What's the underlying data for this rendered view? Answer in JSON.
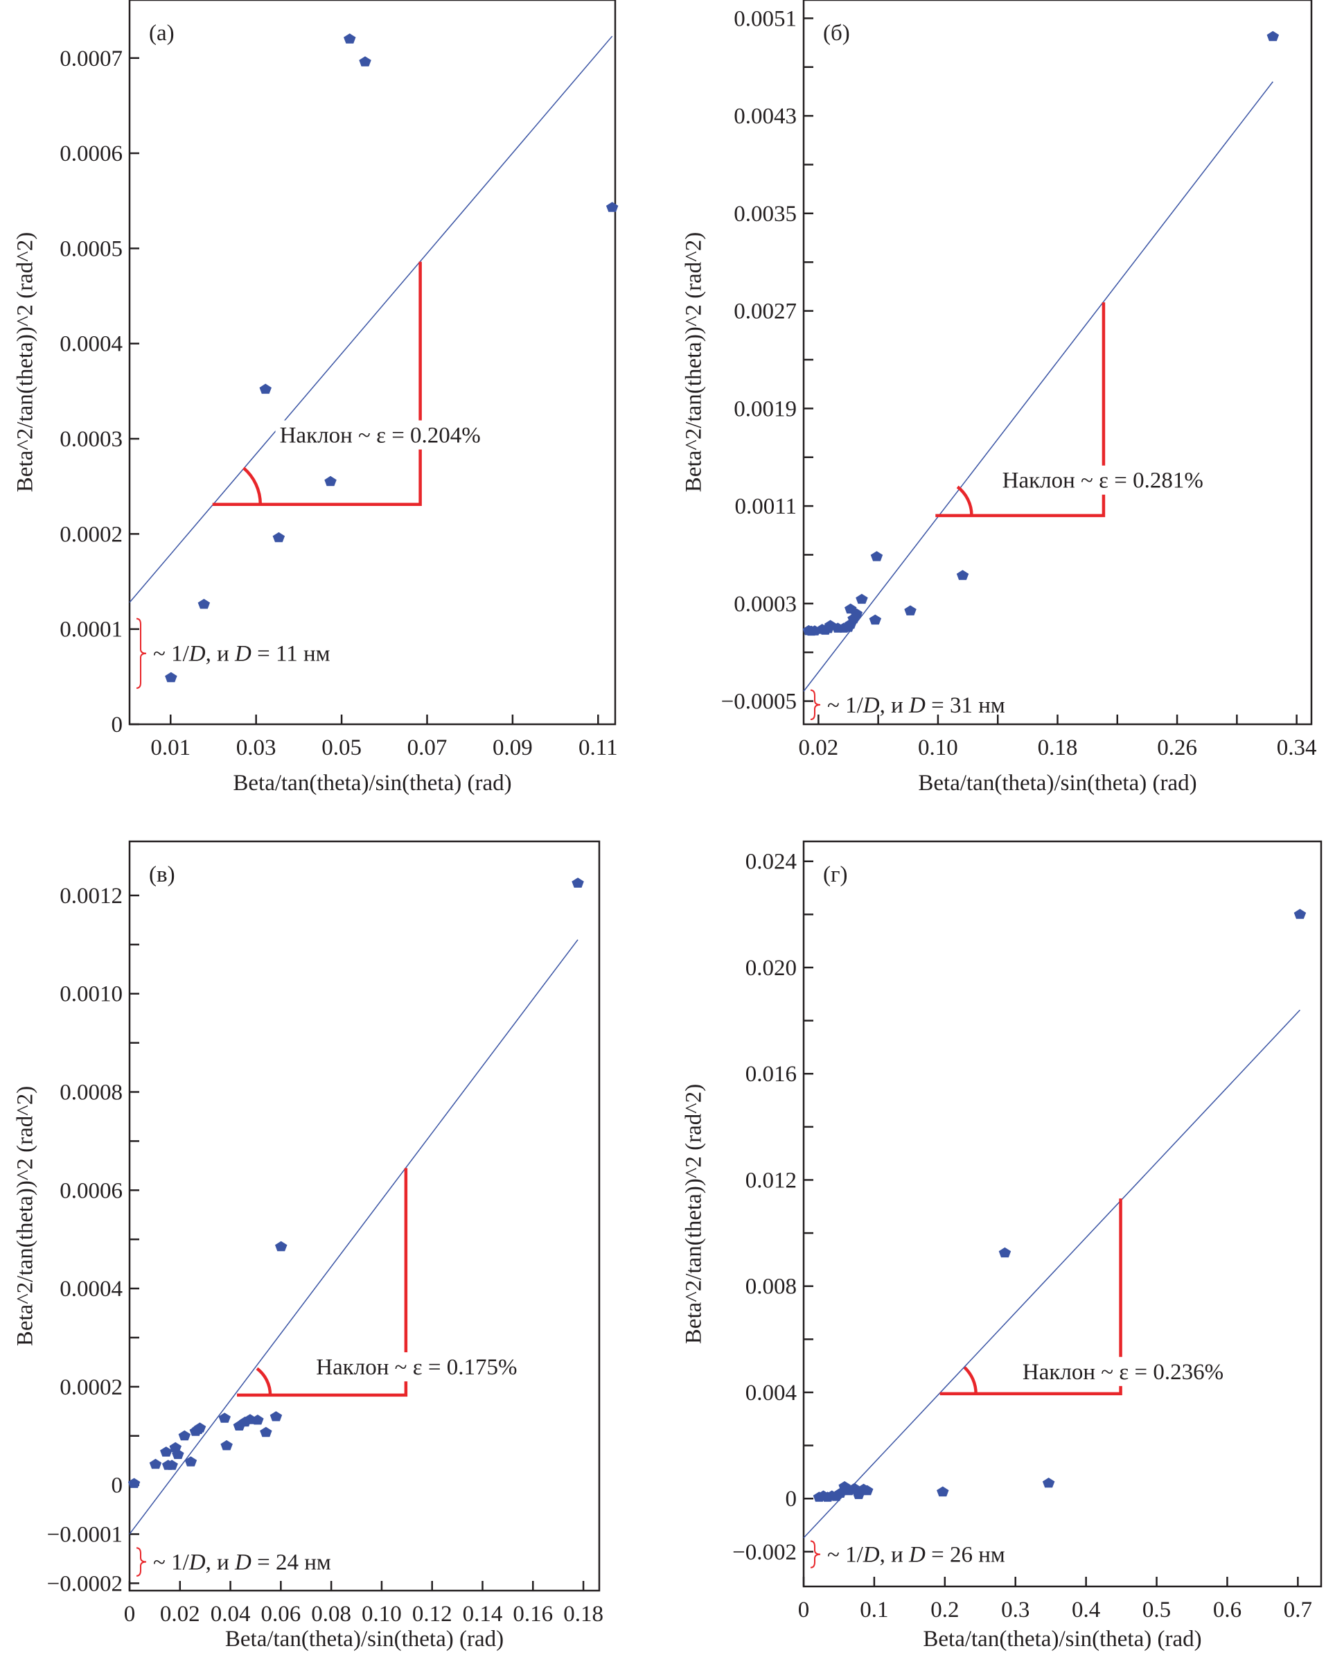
{
  "chart_data": [
    {
      "id": "a",
      "type": "scatter",
      "panel_label": "(а)",
      "xlabel": "Beta/tan(theta)/sin(theta) (rad)",
      "ylabel": "Beta^2/tan(theta))^2 (rad^2)",
      "xlim": [
        0.0004,
        0.114
      ],
      "ylim": [
        0,
        0.000761
      ],
      "xticks": [
        0.01,
        0.03,
        0.05,
        0.07,
        0.09,
        0.11
      ],
      "xtick_labels": [
        "0.01",
        "0.03",
        "0.05",
        "0.07",
        "0.09",
        "0.11"
      ],
      "yticks": [
        0,
        0.0001,
        0.0002,
        0.0003,
        0.0004,
        0.0005,
        0.0006,
        0.0007
      ],
      "ytick_labels": [
        "0",
        "0.0001",
        "0.0002",
        "0.0003",
        "0.0004",
        "0.0005",
        "0.0006",
        "0.0007"
      ],
      "yminor": [],
      "points": [
        [
          0.0101,
          4.9e-05
        ],
        [
          0.0178,
          0.000126
        ],
        [
          0.0322,
          0.000352
        ],
        [
          0.0353,
          0.000196
        ],
        [
          0.0474,
          0.000255
        ],
        [
          0.0519,
          0.00072
        ],
        [
          0.0555,
          0.000696
        ],
        [
          0.1133,
          0.000543
        ]
      ],
      "fit_line": {
        "x": [
          0.0004,
          0.1133
        ],
        "y": [
          0.000128,
          0.000723
        ]
      },
      "slope_triangle": {
        "x0": 0.0198,
        "x1": 0.0684,
        "y0": 0.000231,
        "y1": 0.000486,
        "arc_x": 0.031
      },
      "slope_text": "Наклон ~ ε = 0.204%",
      "slope_text_pos": [
        0.0355,
        0.000296
      ],
      "intercept_brace": {
        "y0": 3.8e-05,
        "y1": 0.000111
      },
      "intercept_text_prefix": "~ 1/",
      "intercept_text_D": "D",
      "intercept_text_mid": ", и ",
      "intercept_text_D2": "D",
      "intercept_text_suffix": " = 11 нм",
      "colors": {
        "points": "#3a54a4",
        "line": "#3a54a4",
        "annotation": "#e8262a",
        "axis": "#231f20"
      }
    },
    {
      "id": "b",
      "type": "scatter",
      "panel_label": "(б)",
      "xlabel": "Beta/tan(theta)/sin(theta) (rad)",
      "ylabel": "Beta^2/tan(theta))^2 (rad^2)",
      "xlim": [
        0.0101,
        0.3499
      ],
      "ylim": [
        -0.00069,
        0.00525
      ],
      "xticks": [
        0.02,
        0.1,
        0.18,
        0.26,
        0.34
      ],
      "xtick_labels": [
        "0.02",
        "0.10",
        "0.18",
        "0.26",
        "0.34"
      ],
      "xminor": [
        0.06,
        0.14,
        0.22,
        0.3
      ],
      "yticks": [
        -0.0005,
        0.0003,
        0.0011,
        0.0019,
        0.0027,
        0.0035,
        0.0043,
        0.0051
      ],
      "ytick_labels": [
        "−0.0005",
        "0.0003",
        "0.0011",
        "0.0019",
        "0.0027",
        "0.0035",
        "0.0043",
        "0.0051"
      ],
      "yminor": [
        -0.0001,
        0.0007,
        0.0015,
        0.0023,
        0.0031,
        0.0039,
        0.0047
      ],
      "points": [
        [
          0.0135,
          7.8e-05
        ],
        [
          0.0152,
          7.4e-05
        ],
        [
          0.0175,
          7.6e-05
        ],
        [
          0.0225,
          8.8e-05
        ],
        [
          0.0245,
          8.2e-05
        ],
        [
          0.0265,
          9.5e-05
        ],
        [
          0.028,
          0.00012
        ],
        [
          0.033,
          9.8e-05
        ],
        [
          0.037,
          9.8e-05
        ],
        [
          0.04,
          0.000105
        ],
        [
          0.0415,
          0.00013
        ],
        [
          0.0435,
          0.000175
        ],
        [
          0.0455,
          0.000215
        ],
        [
          0.0415,
          0.000255
        ],
        [
          0.049,
          0.000335
        ],
        [
          0.058,
          0.000165
        ],
        [
          0.059,
          0.000685
        ],
        [
          0.0815,
          0.00024
        ],
        [
          0.1165,
          0.00053
        ],
        [
          0.3241,
          0.00495
        ]
      ],
      "fit_line": {
        "x": [
          0.0101,
          0.3241
        ],
        "y": [
          -0.00042,
          0.00458
        ]
      },
      "slope_triangle": {
        "x0": 0.0983,
        "x1": 0.2108,
        "y0": 0.001022,
        "y1": 0.00277,
        "arc_x": 0.1225
      },
      "slope_text": "Наклон ~ ε = 0.281%",
      "slope_text_pos": [
        0.143,
        0.00125
      ],
      "intercept_brace": {
        "y0": -0.00065,
        "y1": -0.00041
      },
      "intercept_text_prefix": "~ 1/",
      "intercept_text_D": "D",
      "intercept_text_mid": ", и ",
      "intercept_text_D2": "D",
      "intercept_text_suffix": " = 31 нм",
      "colors": {
        "points": "#3a54a4",
        "line": "#3a54a4",
        "annotation": "#e8262a",
        "axis": "#231f20"
      }
    },
    {
      "id": "c",
      "type": "scatter",
      "panel_label": "(в)",
      "xlabel": "Beta/tan(theta)/sin(theta) (rad)",
      "ylabel": "Beta^2/tan(theta))^2 (rad^2)",
      "xlim": [
        0,
        0.1863
      ],
      "ylim": [
        -0.000215,
        0.00131
      ],
      "xticks": [
        0,
        0.02,
        0.04,
        0.06,
        0.08,
        0.1,
        0.12,
        0.14,
        0.16,
        0.18
      ],
      "xtick_labels": [
        "0",
        "0.02",
        "0.04",
        "0.06",
        "0.08",
        "0.10",
        "0.12",
        "0.14",
        "0.16",
        "0.18"
      ],
      "yticks": [
        -0.0002,
        -0.0001,
        0,
        0.0002,
        0.0004,
        0.0006,
        0.0008,
        0.001,
        0.0012
      ],
      "ytick_labels": [
        "−0.0002",
        "−0.0001",
        "0",
        "0.0002",
        "0.0004",
        "0.0006",
        "0.0008",
        "0.0010",
        "0.0012"
      ],
      "yminor": [
        0.0001,
        0.0003,
        0.0005,
        0.0007,
        0.0009,
        0.0011
      ],
      "points": [
        [
          0.0018,
          3e-06
        ],
        [
          0.0103,
          4.2e-05
        ],
        [
          0.0145,
          6.7e-05
        ],
        [
          0.0153,
          4e-05
        ],
        [
          0.0168,
          4e-05
        ],
        [
          0.0182,
          7.6e-05
        ],
        [
          0.0192,
          6.2e-05
        ],
        [
          0.0218,
          0.0001
        ],
        [
          0.0243,
          4.7e-05
        ],
        [
          0.0262,
          0.000109
        ],
        [
          0.0272,
          0.000113
        ],
        [
          0.0279,
          0.000116
        ],
        [
          0.0377,
          0.000136
        ],
        [
          0.0385,
          8e-05
        ],
        [
          0.0435,
          0.00012
        ],
        [
          0.0458,
          0.000128
        ],
        [
          0.0478,
          0.000133
        ],
        [
          0.0508,
          0.000132
        ],
        [
          0.0541,
          0.000107
        ],
        [
          0.0581,
          0.000139
        ],
        [
          0.0601,
          0.000485
        ],
        [
          0.1778,
          0.001225
        ]
      ],
      "fit_line": {
        "x": [
          0.0,
          0.1778
        ],
        "y": [
          -0.0001,
          0.00111
        ]
      },
      "slope_triangle": {
        "x0": 0.0426,
        "x1": 0.1096,
        "y0": 0.000183,
        "y1": 0.000645,
        "arc_x": 0.0558
      },
      "slope_text": "Наклон ~ ε = 0.175%",
      "slope_text_pos": [
        0.074,
        0.000225
      ],
      "intercept_brace": {
        "y0": -0.000185,
        "y1": -0.000128
      },
      "intercept_text_prefix": "~ 1/",
      "intercept_text_D": "D",
      "intercept_text_mid": ", и ",
      "intercept_text_D2": "D",
      "intercept_text_suffix": " = 24 нм",
      "colors": {
        "points": "#3a54a4",
        "line": "#3a54a4",
        "annotation": "#e8262a",
        "axis": "#231f20"
      }
    },
    {
      "id": "d",
      "type": "scatter",
      "panel_label": "(г)",
      "xlabel": "Beta/tan(theta)/sin(theta) (rad)",
      "ylabel": "Beta^2/tan(theta))^2 (rad^2)",
      "xlim": [
        0,
        0.733
      ],
      "ylim": [
        -0.00331,
        0.02475
      ],
      "xticks": [
        0,
        0.1,
        0.2,
        0.3,
        0.4,
        0.5,
        0.6,
        0.7
      ],
      "xtick_labels": [
        "0",
        "0.1",
        "0.2",
        "0.3",
        "0.4",
        "0.5",
        "0.6",
        "0.7"
      ],
      "yticks": [
        -0.002,
        0,
        0.004,
        0.008,
        0.012,
        0.016,
        0.02,
        0.024
      ],
      "ytick_labels": [
        "−0.002",
        "0",
        "0.004",
        "0.008",
        "0.012",
        "0.016",
        "0.020",
        "0.024"
      ],
      "yminor": [
        0.002,
        0.006,
        0.01,
        0.014,
        0.018,
        0.022
      ],
      "points": [
        [
          0.022,
          5e-05
        ],
        [
          0.028,
          0.0001
        ],
        [
          0.034,
          5e-05
        ],
        [
          0.04,
          0.0001
        ],
        [
          0.046,
          8e-05
        ],
        [
          0.052,
          0.0002
        ],
        [
          0.058,
          0.00045
        ],
        [
          0.064,
          0.0003
        ],
        [
          0.072,
          0.00038
        ],
        [
          0.078,
          0.00015
        ],
        [
          0.085,
          0.00035
        ],
        [
          0.09,
          0.0003
        ],
        [
          0.197,
          0.00025
        ],
        [
          0.285,
          0.00925
        ],
        [
          0.347,
          0.00058
        ],
        [
          0.703,
          0.022
        ]
      ],
      "fit_line": {
        "x": [
          0.0,
          0.703
        ],
        "y": [
          -0.00148,
          0.0184
        ]
      },
      "slope_triangle": {
        "x0": 0.193,
        "x1": 0.449,
        "y0": 0.00395,
        "y1": 0.0113,
        "arc_x": 0.244
      },
      "slope_text": "Наклон ~ ε = 0.236%",
      "slope_text_pos": [
        0.31,
        0.0045
      ],
      "intercept_brace": {
        "y0": -0.0026,
        "y1": -0.0016
      },
      "intercept_text_prefix": "~ 1/",
      "intercept_text_D": "D",
      "intercept_text_mid": ", и ",
      "intercept_text_D2": "D",
      "intercept_text_suffix": " = 26 нм",
      "colors": {
        "points": "#3a54a4",
        "line": "#3a54a4",
        "annotation": "#e8262a",
        "axis": "#231f20"
      }
    }
  ]
}
